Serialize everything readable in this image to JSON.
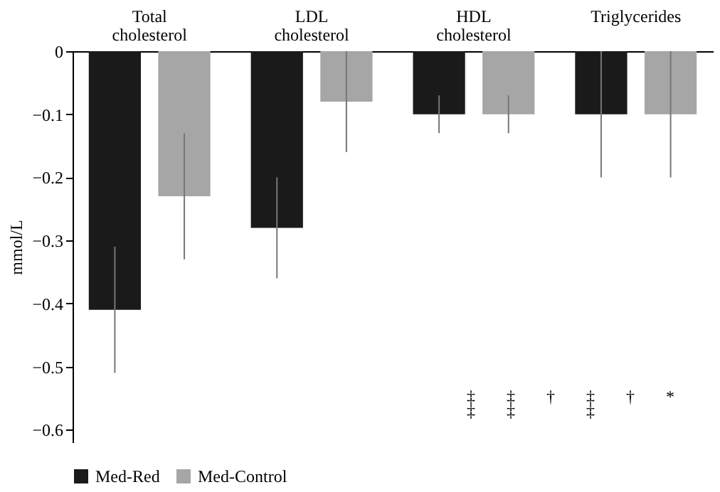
{
  "chart_data": {
    "type": "bar",
    "categories": [
      "Total cholesterol",
      "LDL cholesterol",
      "HDL cholesterol",
      "Triglycerides"
    ],
    "ylabel": "mmol/L",
    "ylim": [
      -0.62,
      0
    ],
    "yticks": [
      -0.6,
      -0.5,
      -0.4,
      -0.3,
      -0.2,
      -0.1,
      0
    ],
    "grid": false,
    "legend": "bottom",
    "series": [
      {
        "name": "Med-Red",
        "color": "#1a1a1a",
        "values": [
          -0.41,
          -0.28,
          -0.1,
          -0.1
        ],
        "errors": [
          0.1,
          0.08,
          0.03,
          0.1
        ]
      },
      {
        "name": "Med-Control",
        "color": "#a6a6a6",
        "values": [
          -0.23,
          -0.08,
          -0.1,
          -0.1
        ],
        "errors": [
          0.1,
          0.08,
          0.03,
          0.1
        ]
      }
    ],
    "annotations": [
      "‡\n‡",
      "‡\n‡",
      "†",
      "‡\n‡",
      "†",
      "*"
    ]
  }
}
